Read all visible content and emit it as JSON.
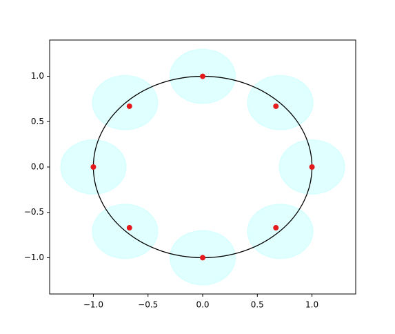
{
  "chart_data": {
    "type": "scatter",
    "xlim": [
      -1.4,
      1.4
    ],
    "ylim": [
      -1.4,
      1.4
    ],
    "xticks": [
      {
        "value": -1,
        "label": "−1.0"
      },
      {
        "value": -0.5,
        "label": "−0.5"
      },
      {
        "value": 0,
        "label": "0.0"
      },
      {
        "value": 0.5,
        "label": "0.5"
      },
      {
        "value": 1,
        "label": "1.0"
      }
    ],
    "yticks": [
      {
        "value": -1,
        "label": "−1.0"
      },
      {
        "value": -0.5,
        "label": "−0.5"
      },
      {
        "value": 0,
        "label": "0.0"
      },
      {
        "value": 0.5,
        "label": "0.5"
      },
      {
        "value": 1,
        "label": "1.0"
      }
    ],
    "series": [
      {
        "color": "#e41a1c",
        "x": [
          1,
          0.67,
          0,
          -0.67,
          -1,
          -0.67,
          0,
          0.67
        ],
        "values": [
          0,
          0.67,
          1,
          0.67,
          0,
          -0.67,
          -1,
          -0.67
        ]
      }
    ],
    "circle": {
      "cx": 0,
      "cy": 0,
      "r": 1,
      "color": "#000000"
    },
    "patches": {
      "cx": [
        1,
        0.71,
        0,
        -0.71,
        -1,
        -0.71,
        0,
        0.71
      ],
      "cy": [
        0,
        0.71,
        1,
        0.71,
        0,
        -0.71,
        -1,
        -0.71
      ],
      "r": 0.3,
      "color": "#00ffff",
      "alpha": 0.12
    }
  }
}
